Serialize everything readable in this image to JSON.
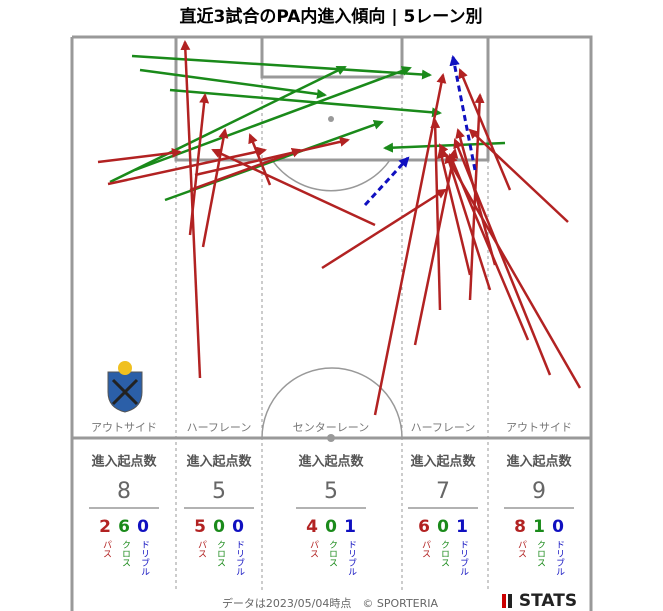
{
  "title": "直近3試合のPA内進入傾向 | 5レーン別",
  "lanes": [
    {
      "name": "アウトサイド",
      "entry_label": "進入起点数",
      "total": 8,
      "breakdown": [
        {
          "value": 2,
          "label": "パス"
        },
        {
          "value": 6,
          "label": "クロス"
        },
        {
          "value": 0,
          "label": "ドリブル"
        }
      ]
    },
    {
      "name": "ハーフレーン",
      "entry_label": "進入起点数",
      "total": 5,
      "breakdown": [
        {
          "value": 5,
          "label": "パス"
        },
        {
          "value": 0,
          "label": "クロス"
        },
        {
          "value": 0,
          "label": "ドリブル"
        }
      ]
    },
    {
      "name": "センターレーン",
      "entry_label": "進入起点数",
      "total": 5,
      "breakdown": [
        {
          "value": 4,
          "label": "パス"
        },
        {
          "value": 0,
          "label": "クロス"
        },
        {
          "value": 1,
          "label": "ドリブル"
        }
      ]
    },
    {
      "name": "ハーフレーン",
      "entry_label": "進入起点数",
      "total": 7,
      "breakdown": [
        {
          "value": 6,
          "label": "パス"
        },
        {
          "value": 0,
          "label": "クロス"
        },
        {
          "value": 1,
          "label": "ドリブル"
        }
      ]
    },
    {
      "name": "アウトサイド",
      "entry_label": "進入起点数",
      "total": 9,
      "breakdown": [
        {
          "value": 8,
          "label": "パス"
        },
        {
          "value": 1,
          "label": "クロス"
        },
        {
          "value": 0,
          "label": "ドリブル"
        }
      ]
    }
  ],
  "footer": "データは2023/05/04時点　© SPORTERIA",
  "logo": "STATS"
}
